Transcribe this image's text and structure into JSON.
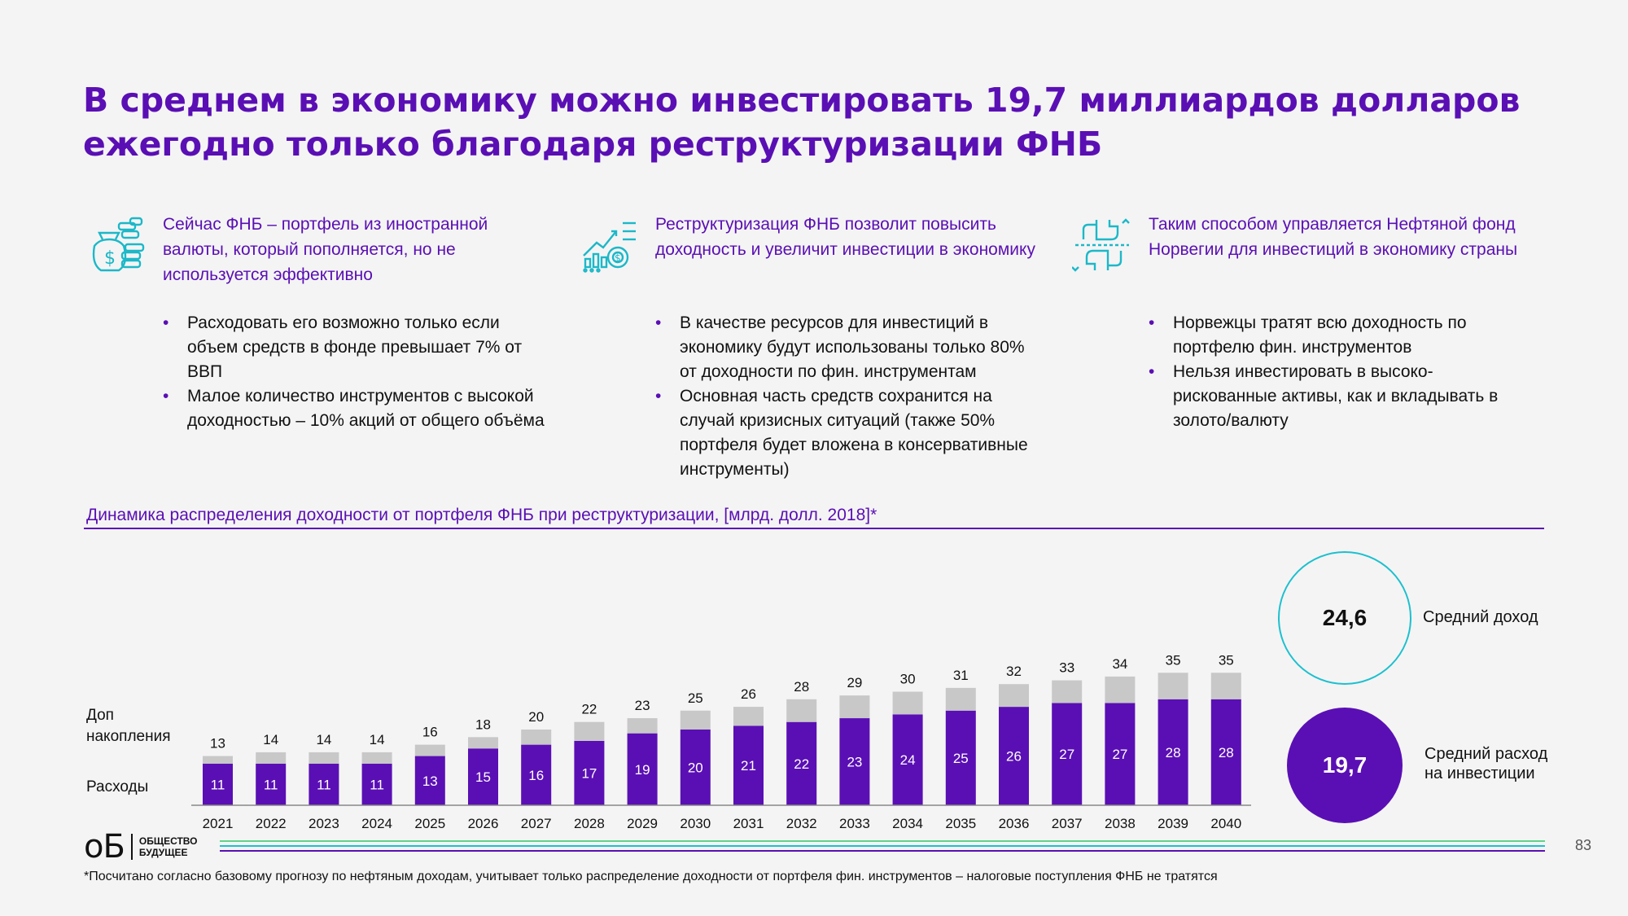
{
  "title": "В среднем в экономику можно инвестировать 19,7 миллиардов долларов ежегодно только благодаря реструктуризации ФНБ",
  "columns": [
    {
      "icon": "money-bag-coins-icon",
      "head": "Сейчас ФНБ – портфель из иностранной валюты, который пополняется, но не используется эффективно",
      "bullets": [
        "Расходовать его возможно только если объем средств в фонде превышает 7% от ВВП",
        "Малое количество инструментов с высокой доходностью – 10% акций от общего объёма"
      ]
    },
    {
      "icon": "growth-chart-gear-icon",
      "head": "Реструктуризация ФНБ позволит повысить доходность и увеличит инвестиции в экономику",
      "bullets": [
        "В качестве ресурсов для инвестиций в экономику будут использованы только 80% от доходности по фин. инструментам",
        "Основная часть средств сохранится на случай кризисных ситуаций (также 50% портфеля будет вложена в консервативные инструменты)"
      ]
    },
    {
      "icon": "hands-exchange-icon",
      "head": "Таким способом управляется Нефтяной фонд Норвегии для инвестиций в экономику страны",
      "bullets": [
        "Норвежцы тратят всю доходность по портфелю фин. инструментов",
        "Нельзя инвестировать в высоко-рискованные активы, как и вкладывать в золото/валюту"
      ]
    }
  ],
  "chart_data": {
    "type": "bar",
    "stacked": true,
    "title": "Динамика распределения доходности от портфеля ФНБ при реструктуризации, [млрд. долл. 2018]*",
    "categories": [
      "2021",
      "2022",
      "2023",
      "2024",
      "2025",
      "2026",
      "2027",
      "2028",
      "2029",
      "2030",
      "2031",
      "2032",
      "2033",
      "2034",
      "2035",
      "2036",
      "2037",
      "2038",
      "2039",
      "2040"
    ],
    "series": [
      {
        "name": "Расходы",
        "color": "#5a0fb4",
        "values": [
          11,
          11,
          11,
          11,
          13,
          15,
          16,
          17,
          19,
          20,
          21,
          22,
          23,
          24,
          25,
          26,
          27,
          27,
          28,
          28
        ]
      },
      {
        "name": "Доп накопления",
        "color": "#c8c8c8",
        "values": [
          2,
          3,
          3,
          3,
          3,
          3,
          4,
          5,
          4,
          5,
          5,
          6,
          6,
          6,
          6,
          6,
          6,
          7,
          7,
          7
        ]
      }
    ],
    "totals": [
      13,
      14,
      14,
      14,
      16,
      18,
      20,
      22,
      23,
      25,
      26,
      28,
      29,
      30,
      31,
      32,
      33,
      34,
      35,
      35
    ],
    "ylim": [
      0,
      36
    ],
    "grid": false,
    "legend": "left"
  },
  "row_labels": {
    "accumulation": "Доп\nнакопления",
    "expenses": "Расходы"
  },
  "summary": {
    "avg_income_value": "24,6",
    "avg_income_label": "Средний доход",
    "avg_invest_value": "19,7",
    "avg_invest_label": "Средний расход\nна инвестиции"
  },
  "footer": {
    "logo_mark": "oБ",
    "logo_words": "ОБЩЕСТВО\nБУДУЩЕЕ",
    "page_number": "83",
    "footnote": "*Посчитано согласно базовому прогнозу по нефтяным доходам, учитывает только распределение доходности от портфеля фин. инструментов – налоговые поступления ФНБ не тратятся",
    "stripe_colors": [
      "#5fd38a",
      "#1cc0cf",
      "#5a0fb4"
    ]
  }
}
